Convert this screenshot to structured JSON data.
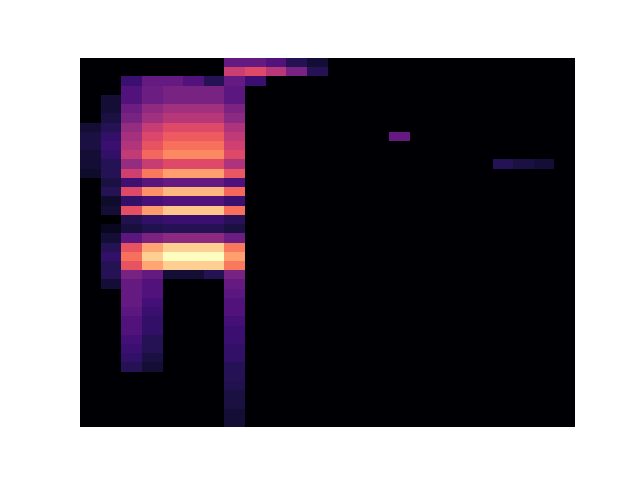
{
  "chart_data": {
    "type": "heatmap",
    "tick_labels": false,
    "zlim": [
      0,
      1
    ],
    "z": [
      [
        0,
        0,
        0,
        0,
        0,
        0,
        0,
        0.3,
        0.3,
        0.25,
        0.15,
        0.1,
        0,
        0,
        0,
        0,
        0,
        0,
        0,
        0,
        0,
        0,
        0,
        0
      ],
      [
        0,
        0,
        0,
        0,
        0,
        0,
        0,
        0.55,
        0.6,
        0.5,
        0.35,
        0.15,
        0,
        0,
        0,
        0,
        0,
        0,
        0,
        0,
        0,
        0,
        0,
        0
      ],
      [
        0,
        0,
        0.2,
        0.3,
        0.3,
        0.25,
        0.15,
        0.3,
        0.2,
        0,
        0,
        0,
        0,
        0,
        0,
        0,
        0,
        0,
        0,
        0,
        0,
        0,
        0,
        0
      ],
      [
        0,
        0,
        0.25,
        0.32,
        0.35,
        0.35,
        0.35,
        0.28,
        0,
        0,
        0,
        0,
        0,
        0,
        0,
        0,
        0,
        0,
        0,
        0,
        0,
        0,
        0,
        0
      ],
      [
        0,
        0.1,
        0.25,
        0.32,
        0.35,
        0.35,
        0.35,
        0.28,
        0,
        0,
        0,
        0,
        0,
        0,
        0,
        0,
        0,
        0,
        0,
        0,
        0,
        0,
        0,
        0
      ],
      [
        0,
        0.1,
        0.32,
        0.41,
        0.45,
        0.45,
        0.45,
        0.36,
        0,
        0,
        0,
        0,
        0,
        0,
        0,
        0,
        0,
        0,
        0,
        0,
        0,
        0,
        0,
        0
      ],
      [
        0,
        0.12,
        0.35,
        0.45,
        0.5,
        0.5,
        0.5,
        0.4,
        0,
        0,
        0,
        0,
        0,
        0,
        0,
        0,
        0,
        0,
        0,
        0,
        0,
        0,
        0,
        0
      ],
      [
        0.1,
        0.15,
        0.42,
        0.54,
        0.6,
        0.6,
        0.6,
        0.48,
        0,
        0,
        0,
        0,
        0,
        0,
        0,
        0,
        0,
        0,
        0,
        0,
        0,
        0,
        0,
        0
      ],
      [
        0.12,
        0.18,
        0.46,
        0.59,
        0.65,
        0.65,
        0.65,
        0.52,
        0,
        0,
        0,
        0,
        0,
        0,
        0,
        0.3,
        0,
        0,
        0,
        0,
        0,
        0,
        0,
        0
      ],
      [
        0.12,
        0.2,
        0.49,
        0.63,
        0.7,
        0.7,
        0.7,
        0.56,
        0,
        0,
        0,
        0,
        0,
        0,
        0,
        0,
        0,
        0,
        0,
        0,
        0,
        0,
        0,
        0
      ],
      [
        0.1,
        0.18,
        0.53,
        0.68,
        0.75,
        0.75,
        0.75,
        0.6,
        0,
        0,
        0,
        0,
        0,
        0,
        0,
        0,
        0,
        0,
        0,
        0,
        0,
        0,
        0,
        0
      ],
      [
        0.1,
        0.15,
        0.42,
        0.54,
        0.6,
        0.6,
        0.6,
        0.48,
        0,
        0,
        0,
        0,
        0,
        0,
        0,
        0,
        0,
        0,
        0,
        0,
        0.15,
        0.12,
        0.1,
        0
      ],
      [
        0.08,
        0.15,
        0.56,
        0.72,
        0.8,
        0.8,
        0.8,
        0.64,
        0,
        0,
        0,
        0,
        0,
        0,
        0,
        0,
        0,
        0,
        0,
        0,
        0,
        0,
        0,
        0
      ],
      [
        0,
        0.12,
        0.21,
        0.27,
        0.3,
        0.3,
        0.3,
        0.24,
        0,
        0,
        0,
        0,
        0,
        0,
        0,
        0,
        0,
        0,
        0,
        0,
        0,
        0,
        0,
        0
      ],
      [
        0,
        0.15,
        0.6,
        0.77,
        0.85,
        0.85,
        0.85,
        0.68,
        0,
        0,
        0,
        0,
        0,
        0,
        0,
        0,
        0,
        0,
        0,
        0,
        0,
        0,
        0,
        0
      ],
      [
        0,
        0.08,
        0.18,
        0.23,
        0.25,
        0.25,
        0.25,
        0.2,
        0,
        0,
        0,
        0,
        0,
        0,
        0,
        0,
        0,
        0,
        0,
        0,
        0,
        0,
        0,
        0
      ],
      [
        0,
        0.1,
        0.62,
        0.79,
        0.88,
        0.88,
        0.88,
        0.7,
        0,
        0,
        0,
        0,
        0,
        0,
        0,
        0,
        0,
        0,
        0,
        0,
        0,
        0,
        0,
        0
      ],
      [
        0,
        0,
        0.14,
        0.18,
        0.2,
        0.2,
        0.2,
        0.16,
        0,
        0,
        0,
        0,
        0,
        0,
        0,
        0,
        0,
        0,
        0,
        0,
        0,
        0,
        0,
        0
      ],
      [
        0,
        0.06,
        0.11,
        0.14,
        0.15,
        0.15,
        0.15,
        0.12,
        0,
        0,
        0,
        0,
        0,
        0,
        0,
        0,
        0,
        0,
        0,
        0,
        0,
        0,
        0,
        0
      ],
      [
        0,
        0.1,
        0.28,
        0.36,
        0.4,
        0.4,
        0.4,
        0.32,
        0,
        0,
        0,
        0,
        0,
        0,
        0,
        0,
        0,
        0,
        0,
        0,
        0,
        0,
        0,
        0
      ],
      [
        0,
        0.15,
        0.63,
        0.81,
        0.9,
        0.9,
        0.9,
        0.72,
        0,
        0,
        0,
        0,
        0,
        0,
        0,
        0,
        0,
        0,
        0,
        0,
        0,
        0,
        0,
        0
      ],
      [
        0,
        0.18,
        0.7,
        0.9,
        1,
        1,
        1,
        0.8,
        0,
        0,
        0,
        0,
        0,
        0,
        0,
        0,
        0,
        0,
        0,
        0,
        0,
        0,
        0,
        0
      ],
      [
        0,
        0.15,
        0.63,
        0.81,
        0.9,
        0.9,
        0.9,
        0.72,
        0,
        0,
        0,
        0,
        0,
        0,
        0,
        0,
        0,
        0,
        0,
        0,
        0,
        0,
        0,
        0
      ],
      [
        0,
        0.15,
        0.35,
        0.3,
        0.1,
        0.1,
        0.15,
        0.35,
        0,
        0,
        0,
        0,
        0,
        0,
        0,
        0,
        0,
        0,
        0,
        0,
        0,
        0,
        0,
        0
      ],
      [
        0,
        0.1,
        0.3,
        0.25,
        0,
        0,
        0,
        0.3,
        0,
        0,
        0,
        0,
        0,
        0,
        0,
        0,
        0,
        0,
        0,
        0,
        0,
        0,
        0,
        0
      ],
      [
        0,
        0,
        0.3,
        0.25,
        0,
        0,
        0,
        0.28,
        0,
        0,
        0,
        0,
        0,
        0,
        0,
        0,
        0,
        0,
        0,
        0,
        0,
        0,
        0,
        0
      ],
      [
        0,
        0,
        0.3,
        0.22,
        0,
        0,
        0,
        0.25,
        0,
        0,
        0,
        0,
        0,
        0,
        0,
        0,
        0,
        0,
        0,
        0,
        0,
        0,
        0,
        0
      ],
      [
        0,
        0,
        0.28,
        0.2,
        0,
        0,
        0,
        0.25,
        0,
        0,
        0,
        0,
        0,
        0,
        0,
        0,
        0,
        0,
        0,
        0,
        0,
        0,
        0,
        0
      ],
      [
        0,
        0,
        0.25,
        0.18,
        0,
        0,
        0,
        0.22,
        0,
        0,
        0,
        0,
        0,
        0,
        0,
        0,
        0,
        0,
        0,
        0,
        0,
        0,
        0,
        0
      ],
      [
        0,
        0,
        0.25,
        0.18,
        0,
        0,
        0,
        0.2,
        0,
        0,
        0,
        0,
        0,
        0,
        0,
        0,
        0,
        0,
        0,
        0,
        0,
        0,
        0,
        0
      ],
      [
        0,
        0,
        0.22,
        0.15,
        0,
        0,
        0,
        0.2,
        0,
        0,
        0,
        0,
        0,
        0,
        0,
        0,
        0,
        0,
        0,
        0,
        0,
        0,
        0,
        0
      ],
      [
        0,
        0,
        0.2,
        0.15,
        0,
        0,
        0,
        0.18,
        0,
        0,
        0,
        0,
        0,
        0,
        0,
        0,
        0,
        0,
        0,
        0,
        0,
        0,
        0,
        0
      ],
      [
        0,
        0,
        0.18,
        0.12,
        0,
        0,
        0,
        0.18,
        0,
        0,
        0,
        0,
        0,
        0,
        0,
        0,
        0,
        0,
        0,
        0,
        0,
        0,
        0,
        0
      ],
      [
        0,
        0,
        0.15,
        0.1,
        0,
        0,
        0,
        0.15,
        0,
        0,
        0,
        0,
        0,
        0,
        0,
        0,
        0,
        0,
        0,
        0,
        0,
        0,
        0,
        0
      ],
      [
        0,
        0,
        0,
        0,
        0,
        0,
        0,
        0.15,
        0,
        0,
        0,
        0,
        0,
        0,
        0,
        0,
        0,
        0,
        0,
        0,
        0,
        0,
        0,
        0
      ],
      [
        0,
        0,
        0,
        0,
        0,
        0,
        0,
        0.14,
        0,
        0,
        0,
        0,
        0,
        0,
        0,
        0,
        0,
        0,
        0,
        0,
        0,
        0,
        0,
        0
      ],
      [
        0,
        0,
        0,
        0,
        0,
        0,
        0,
        0.12,
        0,
        0,
        0,
        0,
        0,
        0,
        0,
        0,
        0,
        0,
        0,
        0,
        0,
        0,
        0,
        0
      ],
      [
        0,
        0,
        0,
        0,
        0,
        0,
        0,
        0.12,
        0,
        0,
        0,
        0,
        0,
        0,
        0,
        0,
        0,
        0,
        0,
        0,
        0,
        0,
        0,
        0
      ],
      [
        0,
        0,
        0,
        0,
        0,
        0,
        0,
        0.1,
        0,
        0,
        0,
        0,
        0,
        0,
        0,
        0,
        0,
        0,
        0,
        0,
        0,
        0,
        0,
        0
      ],
      [
        0,
        0,
        0,
        0,
        0,
        0,
        0,
        0.1,
        0,
        0,
        0,
        0,
        0,
        0,
        0,
        0,
        0,
        0,
        0,
        0,
        0,
        0,
        0,
        0
      ]
    ]
  }
}
